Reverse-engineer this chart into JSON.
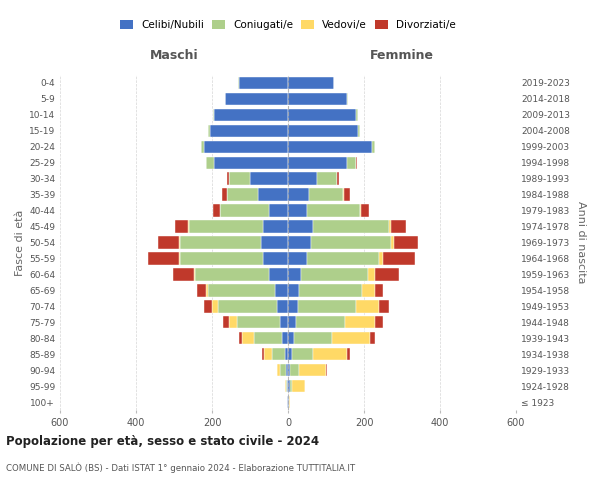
{
  "age_groups": [
    "100+",
    "95-99",
    "90-94",
    "85-89",
    "80-84",
    "75-79",
    "70-74",
    "65-69",
    "60-64",
    "55-59",
    "50-54",
    "45-49",
    "40-44",
    "35-39",
    "30-34",
    "25-29",
    "20-24",
    "15-19",
    "10-14",
    "5-9",
    "0-4"
  ],
  "birth_years": [
    "≤ 1923",
    "1924-1928",
    "1929-1933",
    "1934-1938",
    "1939-1943",
    "1944-1948",
    "1949-1953",
    "1954-1958",
    "1959-1963",
    "1964-1968",
    "1969-1973",
    "1974-1978",
    "1979-1983",
    "1984-1988",
    "1989-1993",
    "1994-1998",
    "1999-2003",
    "2004-2008",
    "2009-2013",
    "2014-2018",
    "2019-2023"
  ],
  "male": {
    "celibe": [
      2,
      3,
      5,
      8,
      15,
      20,
      30,
      35,
      50,
      65,
      70,
      65,
      50,
      80,
      100,
      195,
      220,
      205,
      195,
      165,
      130
    ],
    "coniugato": [
      0,
      3,
      15,
      35,
      75,
      115,
      155,
      175,
      195,
      220,
      215,
      195,
      130,
      80,
      55,
      20,
      10,
      5,
      2,
      2,
      2
    ],
    "vedovo": [
      0,
      2,
      8,
      20,
      30,
      20,
      15,
      5,
      3,
      3,
      2,
      2,
      0,
      0,
      0,
      0,
      0,
      0,
      0,
      0,
      0
    ],
    "divorziato": [
      0,
      0,
      0,
      5,
      8,
      15,
      20,
      25,
      55,
      80,
      55,
      35,
      18,
      15,
      5,
      2,
      0,
      0,
      0,
      0,
      0
    ]
  },
  "female": {
    "nubile": [
      2,
      5,
      5,
      10,
      15,
      20,
      25,
      30,
      35,
      50,
      60,
      65,
      50,
      55,
      75,
      155,
      220,
      185,
      180,
      155,
      120
    ],
    "coniugata": [
      0,
      5,
      25,
      55,
      100,
      130,
      155,
      165,
      175,
      190,
      210,
      200,
      140,
      90,
      55,
      25,
      10,
      5,
      3,
      2,
      2
    ],
    "vedova": [
      2,
      35,
      70,
      90,
      100,
      80,
      60,
      35,
      18,
      10,
      8,
      5,
      3,
      2,
      0,
      0,
      0,
      0,
      0,
      0,
      0
    ],
    "divorziata": [
      0,
      0,
      3,
      8,
      15,
      20,
      25,
      20,
      65,
      85,
      65,
      40,
      20,
      15,
      5,
      2,
      0,
      0,
      0,
      0,
      0
    ]
  },
  "colors": {
    "celibe": "#4472C4",
    "coniugato": "#AECF8B",
    "vedovo": "#FFD966",
    "divorziato": "#C0392B"
  },
  "legend_labels": [
    "Celibi/Nubili",
    "Coniugati/e",
    "Vedovi/e",
    "Divorziati/e"
  ],
  "legend_marker_colors": [
    "#4472C4",
    "#AECF8B",
    "#FFD966",
    "#C0392B"
  ],
  "title": "Popolazione per età, sesso e stato civile - 2024",
  "subtitle": "COMUNE DI SALÒ (BS) - Dati ISTAT 1° gennaio 2024 - Elaborazione TUTTITALIA.IT",
  "ylabel_left": "Fasce di età",
  "ylabel_right": "Anni di nascita",
  "header_left": "Maschi",
  "header_right": "Femmine",
  "xlim": 600,
  "bg_color": "#ffffff",
  "grid_color": "#cccccc",
  "tick_vals": [
    -600,
    -400,
    -200,
    0,
    200,
    400,
    600
  ]
}
